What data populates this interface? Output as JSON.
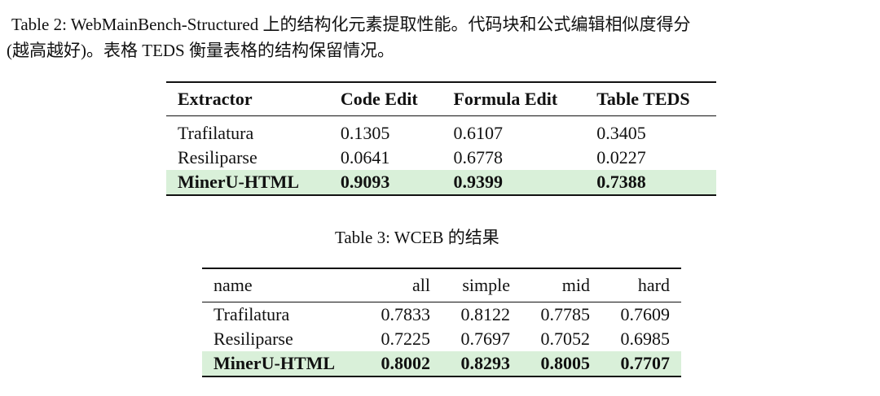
{
  "table2": {
    "caption_line1": "Table 2: WebMainBench-Structured 上的结构化元素提取性能。代码块和公式编辑相似度得分",
    "caption_line2": "(越高越好)。表格 TEDS 衡量表格的结构保留情况。",
    "headers": [
      "Extractor",
      "Code Edit",
      "Formula Edit",
      "Table TEDS"
    ],
    "rows": [
      [
        "Trafilatura",
        "0.1305",
        "0.6107",
        "0.3405"
      ],
      [
        "Resiliparse",
        "0.0641",
        "0.6778",
        "0.0227"
      ],
      [
        "MinerU-HTML",
        "0.9093",
        "0.9399",
        "0.7388"
      ]
    ],
    "highlight_color": "#d9f0d9"
  },
  "table3": {
    "caption": "Table 3: WCEB 的结果",
    "headers": [
      "name",
      "all",
      "simple",
      "mid",
      "hard"
    ],
    "rows": [
      [
        "Trafilatura",
        "0.7833",
        "0.8122",
        "0.7785",
        "0.7609"
      ],
      [
        "Resiliparse",
        "0.7225",
        "0.7697",
        "0.7052",
        "0.6985"
      ],
      [
        "MinerU-HTML",
        "0.8002",
        "0.8293",
        "0.8005",
        "0.7707"
      ]
    ]
  }
}
